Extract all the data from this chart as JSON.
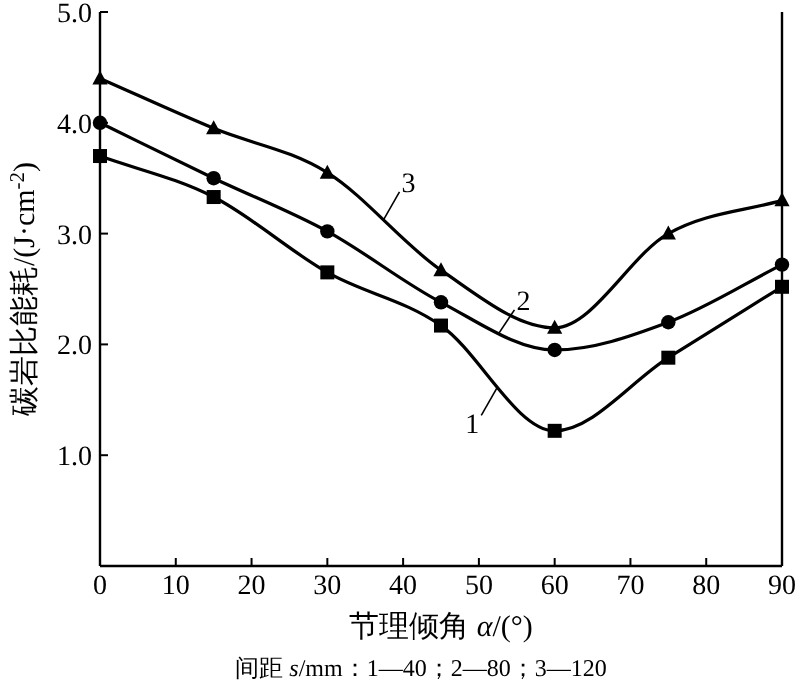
{
  "chart_data": {
    "type": "line",
    "xlabel": "节理倾角 *α*/(°)",
    "ylabel": "碳岩比能耗/(J·cm$^{-2}$)",
    "xlim": [
      0,
      90
    ],
    "xticks": [
      0,
      10,
      20,
      30,
      40,
      50,
      60,
      70,
      80,
      90
    ],
    "ylim": [
      0,
      5
    ],
    "yticks": [
      {
        "value": 1,
        "label": "1.0"
      },
      {
        "value": 2,
        "label": "2.0"
      },
      {
        "value": 3,
        "label": "3.0"
      },
      {
        "value": 4,
        "label": "4.0"
      },
      {
        "value": 5,
        "label": "5.0"
      }
    ],
    "x": [
      0,
      15,
      30,
      45,
      60,
      75,
      90
    ],
    "series": [
      {
        "name": "1",
        "color": "#000000",
        "marker": "square",
        "values": [
          3.7,
          3.33,
          2.65,
          2.17,
          1.22,
          1.88,
          2.52
        ]
      },
      {
        "name": "2",
        "color": "#000000",
        "marker": "circle",
        "values": [
          4.0,
          3.5,
          3.02,
          2.38,
          1.95,
          2.2,
          2.72
        ]
      },
      {
        "name": "3",
        "color": "#000000",
        "marker": "triangle",
        "values": [
          4.4,
          3.95,
          3.55,
          2.67,
          2.15,
          3.0,
          3.3
        ]
      }
    ],
    "grid": false,
    "line_style": "solid",
    "annotations": [
      "间距 *s*/mm：1—40；2—80；3—120"
    ]
  }
}
